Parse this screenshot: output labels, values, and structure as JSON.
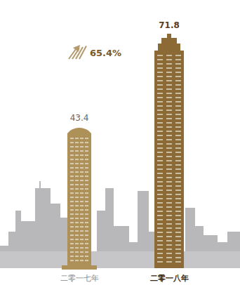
{
  "chart_data": {
    "type": "bar",
    "categories": [
      "二零一七年",
      "二零一八年"
    ],
    "values": [
      43.4,
      71.8
    ],
    "colors": [
      "#ae9159",
      "#8c6a36"
    ],
    "ylim": [
      0,
      71.8
    ],
    "yticks": [],
    "data_labels": true,
    "tick_labels": "x",
    "grid": false,
    "annotation": "65.4%"
  }
}
